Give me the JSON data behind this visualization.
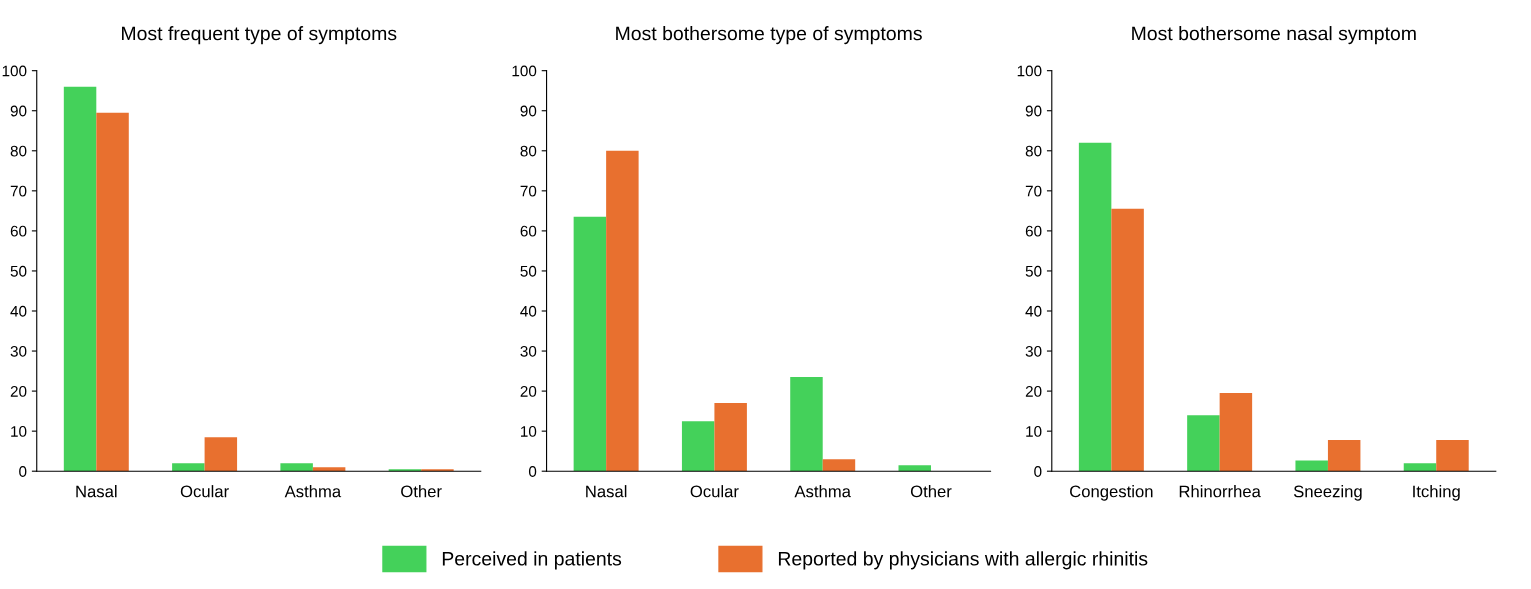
{
  "chart_data": [
    {
      "type": "bar",
      "title": "Most frequent type of symptoms",
      "categories": [
        "Nasal",
        "Ocular",
        "Asthma",
        "Other"
      ],
      "ylim": [
        0,
        100
      ],
      "yticks": [
        0,
        10,
        20,
        30,
        40,
        50,
        60,
        70,
        80,
        90,
        100
      ],
      "grid": false,
      "legend": "bottom",
      "series": [
        {
          "name": "Perceived in patients",
          "color": "#44d15a",
          "values": [
            96,
            2,
            2,
            0.5
          ]
        },
        {
          "name": "Reported by physicians with allergic rhinitis",
          "color": "#e8702f",
          "values": [
            89.5,
            8.5,
            1,
            0.5
          ]
        }
      ]
    },
    {
      "type": "bar",
      "title": "Most bothersome type of symptoms",
      "categories": [
        "Nasal",
        "Ocular",
        "Asthma",
        "Other"
      ],
      "ylim": [
        0,
        100
      ],
      "yticks": [
        0,
        10,
        20,
        30,
        40,
        50,
        60,
        70,
        80,
        90,
        100
      ],
      "grid": false,
      "legend": "bottom",
      "series": [
        {
          "name": "Perceived in patients",
          "color": "#44d15a",
          "values": [
            63.5,
            12.5,
            23.5,
            1.5
          ]
        },
        {
          "name": "Reported by physicians with allergic rhinitis",
          "color": "#e8702f",
          "values": [
            80,
            17,
            3,
            0
          ]
        }
      ]
    },
    {
      "type": "bar",
      "title": "Most bothersome nasal symptom",
      "categories": [
        "Congestion",
        "Rhinorrhea",
        "Sneezing",
        "Itching"
      ],
      "ylim": [
        0,
        100
      ],
      "yticks": [
        0,
        10,
        20,
        30,
        40,
        50,
        60,
        70,
        80,
        90,
        100
      ],
      "grid": false,
      "legend": "bottom",
      "series": [
        {
          "name": "Perceived in patients",
          "color": "#44d15a",
          "values": [
            82,
            14,
            2.7,
            2
          ]
        },
        {
          "name": "Reported by physicians with allergic rhinitis",
          "color": "#e8702f",
          "values": [
            65.5,
            19.5,
            7.8,
            7.8
          ]
        }
      ]
    }
  ]
}
